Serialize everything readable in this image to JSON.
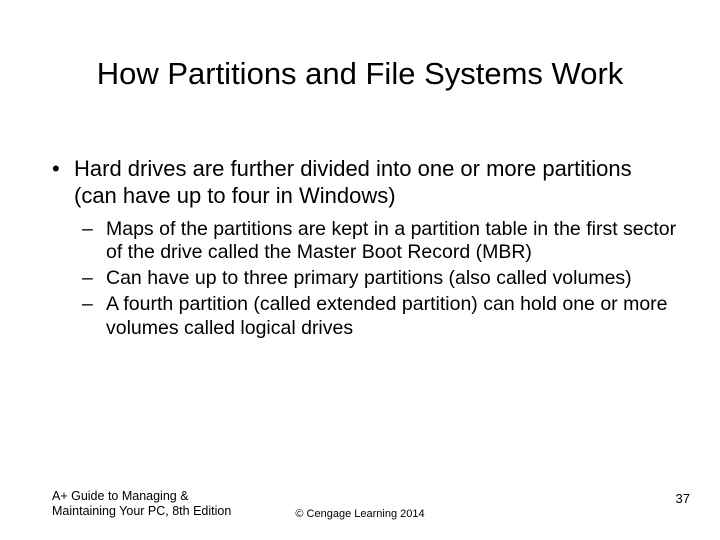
{
  "title": "How Partitions and File Systems Work",
  "bullets": {
    "b1": "Hard drives are further divided into one or more partitions (can have up to four in Windows)",
    "s1": "Maps of the partitions are kept in a partition table in the first sector of the drive called the Master Boot Record (MBR)",
    "s2": "Can have up to three primary partitions (also called volumes)",
    "s3": "A fourth partition (called extended partition) can hold one or more volumes called logical drives"
  },
  "footer": {
    "left_line1": "A+ Guide to Managing &",
    "left_line2": "Maintaining Your PC, 8th Edition",
    "center": "© Cengage Learning  2014",
    "page": "37"
  },
  "colors": {
    "background": "#ffffff",
    "text": "#000000"
  },
  "typography": {
    "title_fontsize": 31,
    "body_fontsize": 22,
    "sub_fontsize": 19.5,
    "footer_fontsize": 12.5,
    "font_family": "Arial"
  }
}
